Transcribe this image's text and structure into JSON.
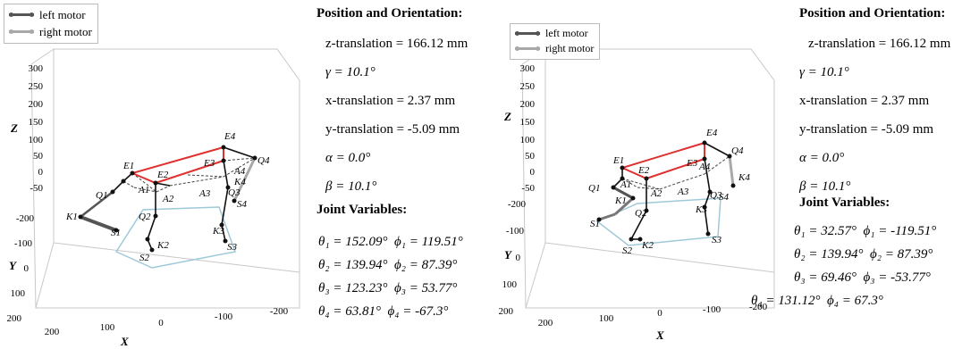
{
  "legend": {
    "left_motor": "left motor",
    "right_motor": "right motor"
  },
  "colors": {
    "left_motor": "#555555",
    "right_motor": "#a8a8a8",
    "top_platform": "#e03030",
    "base": "#9ec9d8",
    "link": "#111111"
  },
  "axes": {
    "z_label": "Z",
    "y_label": "Y",
    "x_label": "X",
    "z_ticks": [
      "300",
      "250",
      "200",
      "150",
      "100",
      "50",
      "0",
      "-50"
    ],
    "y_ticks": [
      "-200",
      "-100",
      "0",
      "100",
      "200"
    ],
    "x_ticks": [
      "200",
      "100",
      "0",
      "-100",
      "-200"
    ]
  },
  "labels": {
    "e1": "E1",
    "e2": "E2",
    "e3": "E3",
    "e4": "E4",
    "a1": "A1",
    "a2": "A2",
    "a3": "A3",
    "a4": "A4",
    "q1": "Q1",
    "q2": "Q2",
    "q3": "Q3",
    "q4": "Q4",
    "k1": "K1",
    "k2": "K2",
    "k3": "K3",
    "k4": "K4",
    "s1": "S1",
    "s2": "S2",
    "s3": "S3",
    "s4": "S4"
  },
  "panels": [
    {
      "position_heading": "Position and Orientation:",
      "z_translation": "z-translation = 166.12 mm",
      "gamma": "γ = 10.1°",
      "x_translation": "x-translation = 2.37 mm",
      "y_translation": "y-translation = -5.09 mm",
      "alpha": "α = 0.0°",
      "beta": "β = 10.1°",
      "joint_heading": "Joint Variables:",
      "joints": [
        {
          "theta": "θ₁ = 152.09°",
          "phi": "ϕ₁ = 119.51°"
        },
        {
          "theta": "θ₂ = 139.94°",
          "phi": "ϕ₂ = 87.39°"
        },
        {
          "theta": "θ₃ = 123.23°",
          "phi": "ϕ₃ = 53.77°"
        },
        {
          "theta": "θ₄ = 63.81°",
          "phi": "ϕ₄ = -67.3°"
        }
      ]
    },
    {
      "position_heading": "Position and Orientation:",
      "z_translation": "z-translation = 166.12 mm",
      "gamma": "γ = 10.1°",
      "x_translation": "x-translation = 2.37 mm",
      "y_translation": "y-translation = -5.09 mm",
      "alpha": "α = 0.0°",
      "beta": "β = 10.1°",
      "joint_heading": "Joint Variables:",
      "joints": [
        {
          "theta": "θ₁ = 32.57°",
          "phi": "ϕ₁ = -119.51°"
        },
        {
          "theta": "θ₂ = 139.94°",
          "phi": "ϕ₂ = 87.39°"
        },
        {
          "theta": "θ₃ = 69.46°",
          "phi": "ϕ₃ = -53.77°"
        },
        {
          "theta": "θ₄ = 131.12°",
          "phi": "ϕ₄ = 67.3°"
        }
      ]
    }
  ]
}
